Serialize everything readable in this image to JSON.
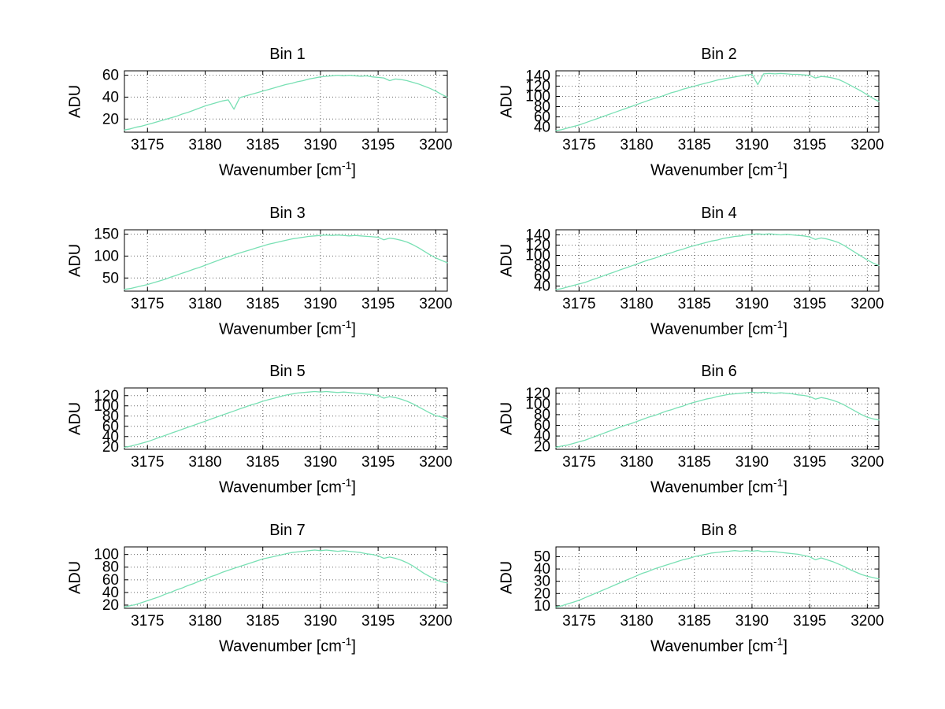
{
  "figure": {
    "background": "#ffffff"
  },
  "chart_data": {
    "type": "line",
    "layout": "4x2 grid of subplots, dotted grid on, no legend",
    "line_color": "#79e0b4",
    "axis": {
      "xlabel_main": "Wavenumber [cm",
      "xlabel_sup": "-1",
      "xlabel_close": "]",
      "xlim": [
        3173,
        3201
      ],
      "xticks": [
        3175,
        3180,
        3185,
        3190,
        3195,
        3200
      ],
      "x_start": 3173,
      "x_step": 0.5,
      "grid": "dotted"
    },
    "charts": [
      {
        "title": "Bin 1",
        "ylabel": "ADU",
        "ylim": [
          8,
          64
        ],
        "yticks": [
          20,
          40,
          60
        ],
        "y": [
          10,
          11,
          12.5,
          13.5,
          15,
          16.5,
          18,
          19.5,
          21,
          22.5,
          24.5,
          26,
          28,
          30,
          32,
          33.5,
          35,
          36.5,
          37.5,
          29,
          39.5,
          41,
          42.5,
          44,
          45.5,
          47,
          48.5,
          50,
          51.5,
          52.5,
          54,
          55,
          56.5,
          57.5,
          58.5,
          59,
          59.5,
          60,
          59.5,
          60,
          59.5,
          59,
          59.5,
          58.5,
          58,
          57.5,
          55,
          56.5,
          56,
          55,
          53.5,
          52,
          50,
          48,
          45.5,
          42.5,
          40
        ]
      },
      {
        "title": "Bin 2",
        "ylabel": "ADU",
        "ylim": [
          30,
          150
        ],
        "yticks": [
          40,
          60,
          80,
          100,
          120,
          140
        ],
        "y": [
          33,
          35,
          38,
          41,
          44,
          48,
          52,
          56,
          60,
          64,
          68,
          72,
          76,
          80,
          84,
          88,
          92,
          96,
          99,
          103,
          107,
          110,
          114,
          117,
          120,
          123,
          126,
          129,
          132,
          134,
          136,
          138,
          140,
          142,
          143,
          123,
          144,
          145,
          144,
          145,
          144,
          143,
          143,
          142,
          141,
          136,
          139,
          138,
          136,
          133,
          128,
          122,
          116,
          110,
          103,
          96,
          90
        ]
      },
      {
        "title": "Bin 3",
        "ylabel": "ADU",
        "ylim": [
          20,
          160
        ],
        "yticks": [
          50,
          100,
          150
        ],
        "y": [
          24,
          26,
          29,
          32,
          35,
          39,
          43,
          47,
          52,
          56,
          61,
          65,
          70,
          74,
          79,
          84,
          89,
          94,
          98,
          103,
          107,
          111,
          115,
          119,
          123,
          127,
          130,
          133,
          136,
          139,
          141,
          143,
          145,
          146,
          147,
          148,
          147,
          148,
          147,
          146,
          147,
          146,
          145,
          144,
          143,
          137,
          141,
          139,
          136,
          132,
          126,
          119,
          111,
          103,
          96,
          90,
          85
        ]
      },
      {
        "title": "Bin 4",
        "ylabel": "ADU",
        "ylim": [
          30,
          150
        ],
        "yticks": [
          40,
          60,
          80,
          100,
          120,
          140
        ],
        "y": [
          33,
          35,
          38,
          41,
          44,
          47,
          51,
          55,
          59,
          63,
          67,
          71,
          75,
          79,
          83,
          87,
          91,
          94,
          98,
          102,
          105,
          109,
          112,
          116,
          119,
          122,
          125,
          128,
          130,
          133,
          135,
          137,
          138,
          140,
          141,
          142,
          141,
          142,
          141,
          140,
          141,
          140,
          139,
          138,
          136,
          131,
          134,
          132,
          129,
          125,
          119,
          112,
          105,
          98,
          91,
          85,
          80
        ]
      },
      {
        "title": "Bin 5",
        "ylabel": "ADU",
        "ylim": [
          15,
          135
        ],
        "yticks": [
          20,
          40,
          60,
          80,
          100,
          120
        ],
        "y": [
          19,
          21,
          24,
          27,
          30,
          34,
          38,
          42,
          46,
          50,
          54,
          58,
          62,
          66,
          70,
          74,
          78,
          82,
          86,
          90,
          94,
          98,
          102,
          105,
          109,
          112,
          115,
          118,
          121,
          123,
          125,
          126,
          127,
          128,
          127,
          128,
          127,
          126,
          127,
          126,
          125,
          124,
          123,
          122,
          120,
          115,
          118,
          116,
          113,
          109,
          104,
          98,
          92,
          86,
          81,
          78,
          75
        ]
      },
      {
        "title": "Bin 6",
        "ylabel": "ADU",
        "ylim": [
          15,
          130
        ],
        "yticks": [
          20,
          40,
          60,
          80,
          100,
          120
        ],
        "y": [
          19,
          21,
          23,
          26,
          29,
          32,
          36,
          40,
          44,
          48,
          52,
          56,
          60,
          63,
          67,
          71,
          75,
          78,
          82,
          86,
          89,
          93,
          96,
          100,
          103,
          106,
          109,
          111,
          114,
          116,
          118,
          119,
          120,
          121,
          122,
          121,
          122,
          121,
          120,
          121,
          120,
          119,
          117,
          116,
          114,
          109,
          112,
          110,
          107,
          103,
          98,
          92,
          86,
          80,
          75,
          72,
          70
        ]
      },
      {
        "title": "Bin 7",
        "ylabel": "ADU",
        "ylim": [
          15,
          112
        ],
        "yticks": [
          20,
          40,
          60,
          80,
          100
        ],
        "y": [
          17,
          19,
          21,
          24,
          27,
          30,
          33,
          37,
          40,
          44,
          47,
          51,
          54,
          58,
          61,
          65,
          68,
          72,
          75,
          78,
          81,
          84,
          87,
          90,
          93,
          95,
          97,
          99,
          101,
          103,
          104,
          105,
          106,
          107,
          106,
          107,
          106,
          105,
          106,
          105,
          104,
          103,
          101,
          100,
          98,
          94,
          96,
          94,
          91,
          87,
          82,
          76,
          70,
          65,
          60,
          57,
          55
        ]
      },
      {
        "title": "Bin 8",
        "ylabel": "ADU",
        "ylim": [
          8,
          58
        ],
        "yticks": [
          10,
          20,
          30,
          40,
          50
        ],
        "y": [
          9,
          10,
          11.5,
          13,
          14.5,
          16.5,
          18.5,
          20.5,
          22.5,
          24.5,
          26.5,
          28.5,
          30.5,
          32.5,
          34.5,
          36.5,
          38,
          40,
          41.5,
          43,
          44.5,
          46,
          47.5,
          48.5,
          50,
          51,
          52,
          53,
          53.5,
          54,
          54.5,
          55,
          54.5,
          55,
          54.5,
          55,
          54,
          54.5,
          54,
          53.5,
          53,
          52.5,
          52,
          51,
          50,
          47.5,
          49,
          47.5,
          46,
          44,
          42,
          39.5,
          37.5,
          35.5,
          34,
          33,
          32
        ]
      }
    ]
  }
}
